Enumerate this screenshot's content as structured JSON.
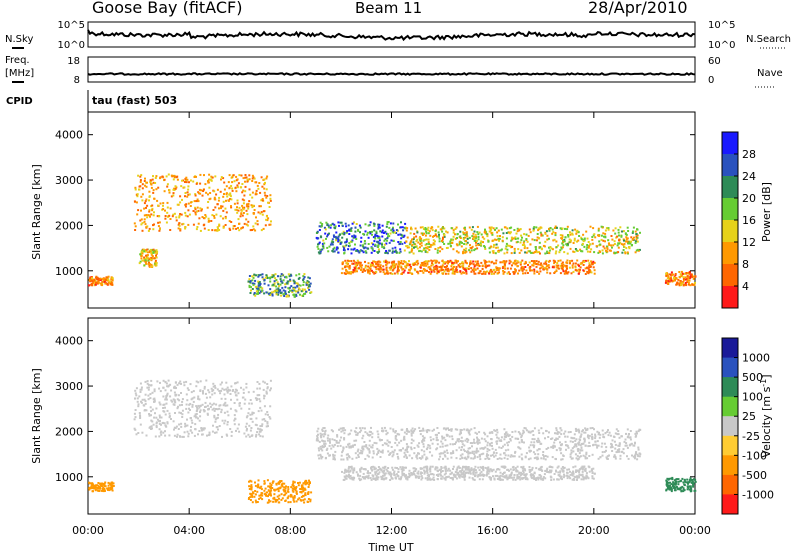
{
  "header": {
    "station": "Goose Bay (fitACF)",
    "beam": "Beam 11",
    "date": "28/Apr/2010"
  },
  "strip_labels": {
    "nsky": "N.Sky",
    "nsky_ticks": [
      "10^5",
      "10^0"
    ],
    "nsearch": "N.Search",
    "nsearch_ticks": [
      "10^5",
      "10^0"
    ],
    "freq_l1": "Freq.",
    "freq_l2": "[MHz]",
    "freq_ticks": [
      "18",
      "8"
    ],
    "nave": "Nave",
    "nave_ticks": [
      "60",
      "0"
    ],
    "cpid": "CPID",
    "cpid_value": "tau (fast) 503"
  },
  "chart_data": [
    {
      "type": "heatmap",
      "name": "power",
      "ylabel": "Slant Range [km]",
      "xlabel": "Time UT",
      "xlim": [
        "00:00",
        "00:00"
      ],
      "ylim": [
        180,
        4500
      ],
      "y_ticks": [
        "1000",
        "2000",
        "3000",
        "4000"
      ],
      "x_ticks": [
        "00:00",
        "04:00",
        "08:00",
        "12:00",
        "16:00",
        "20:00",
        "00:00"
      ],
      "colorbar": {
        "label": "Power [dB]",
        "ticks": [
          "4",
          "8",
          "12",
          "16",
          "20",
          "24",
          "28"
        ],
        "colors": [
          "#1a1aff",
          "#2a52be",
          "#2e8b57",
          "#66cc33",
          "#e6d21a",
          "#ff9900",
          "#ff6600",
          "#ff1a1a"
        ]
      },
      "echo_regions": [
        {
          "hours": [
            0.0,
            1.0
          ],
          "range_km": [
            700,
            900
          ],
          "value": 8
        },
        {
          "hours": [
            1.8,
            7.2
          ],
          "range_km": [
            1900,
            3150
          ],
          "value": 10
        },
        {
          "hours": [
            2.0,
            2.7
          ],
          "range_km": [
            1100,
            1500
          ],
          "value": 12
        },
        {
          "hours": [
            6.3,
            8.8
          ],
          "range_km": [
            450,
            950
          ],
          "value": 20
        },
        {
          "hours": [
            9.0,
            12.5
          ],
          "range_km": [
            1400,
            2100
          ],
          "value": 24
        },
        {
          "hours": [
            12.5,
            21.8
          ],
          "range_km": [
            1400,
            2000
          ],
          "value": 14
        },
        {
          "hours": [
            10.0,
            20.0
          ],
          "range_km": [
            950,
            1250
          ],
          "value": 8
        },
        {
          "hours": [
            22.8,
            24.0
          ],
          "range_km": [
            700,
            1000
          ],
          "value": 8
        }
      ]
    },
    {
      "type": "heatmap",
      "name": "velocity",
      "ylabel": "Slant Range [km]",
      "xlabel": "Time UT",
      "xlim": [
        "00:00",
        "00:00"
      ],
      "ylim": [
        180,
        4500
      ],
      "y_ticks": [
        "1000",
        "2000",
        "3000",
        "4000"
      ],
      "x_ticks": [
        "00:00",
        "04:00",
        "08:00",
        "12:00",
        "16:00",
        "20:00",
        "00:00"
      ],
      "colorbar": {
        "label": "Velocity [m s",
        "label_sup": "-1",
        "label_end": "]",
        "ticks": [
          "1000",
          "500",
          "100",
          "25",
          "-25",
          "-100",
          "-500",
          "-1000"
        ],
        "colors": [
          "#1a1a99",
          "#2a52be",
          "#2e8b57",
          "#66cc33",
          "#c8c8c8",
          "#ffcc33",
          "#ff9900",
          "#ff6600",
          "#ff1a1a"
        ]
      },
      "echo_regions": [
        {
          "hours": [
            0.0,
            1.0
          ],
          "range_km": [
            700,
            900
          ],
          "value": -200
        },
        {
          "hours": [
            1.8,
            7.2
          ],
          "range_km": [
            1900,
            3150
          ],
          "value": 0
        },
        {
          "hours": [
            6.3,
            8.8
          ],
          "range_km": [
            450,
            950
          ],
          "value": -150
        },
        {
          "hours": [
            9.0,
            21.8
          ],
          "range_km": [
            1400,
            2100
          ],
          "value": 0
        },
        {
          "hours": [
            10.0,
            20.0
          ],
          "range_km": [
            950,
            1250
          ],
          "value": 0
        },
        {
          "hours": [
            22.8,
            24.0
          ],
          "range_km": [
            700,
            1000
          ],
          "value": 200
        }
      ]
    }
  ]
}
